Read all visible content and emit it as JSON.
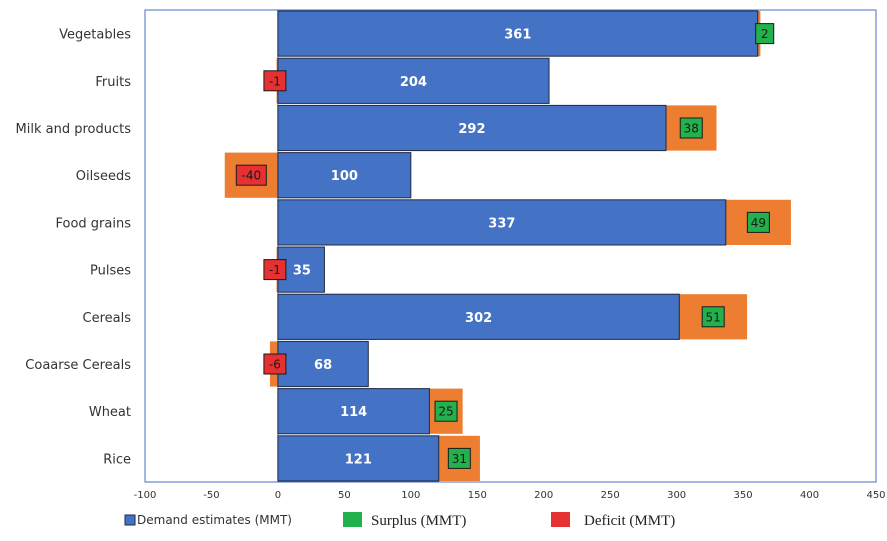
{
  "colors": {
    "demand": "#4472C4",
    "demand_stroke": "#1F2A44",
    "orange": "#ED7D31",
    "surplus": "#22B14C",
    "deficit": "#E53131",
    "plot_border": "#4472C4"
  },
  "legend": {
    "demand": "Demand estimates (MMT)",
    "surplus": "Surplus (MMT)",
    "deficit": "Deficit (MMT)"
  },
  "chart_data": {
    "type": "bar",
    "orientation": "horizontal",
    "categories": [
      "Vegetables",
      "Fruits",
      "Milk and products",
      "Oilseeds",
      "Food grains",
      "Pulses",
      "Cereals",
      "Coaarse Cereals",
      "Wheat",
      "Rice"
    ],
    "series": [
      {
        "name": "Demand estimates (MMT)",
        "values": [
          361,
          204,
          292,
          100,
          337,
          35,
          302,
          68,
          114,
          121
        ]
      },
      {
        "name": "Surplus (MMT)",
        "values": [
          2,
          null,
          38,
          null,
          49,
          null,
          51,
          null,
          25,
          31
        ]
      },
      {
        "name": "Deficit (MMT)",
        "values": [
          null,
          -1,
          null,
          -40,
          null,
          -1,
          null,
          -6,
          null,
          null
        ]
      }
    ],
    "xlim": [
      -100,
      450
    ],
    "xticks": [
      -100,
      -50,
      0,
      50,
      100,
      150,
      200,
      250,
      300,
      350,
      400,
      450
    ],
    "legend_position": "bottom",
    "grid": false
  }
}
